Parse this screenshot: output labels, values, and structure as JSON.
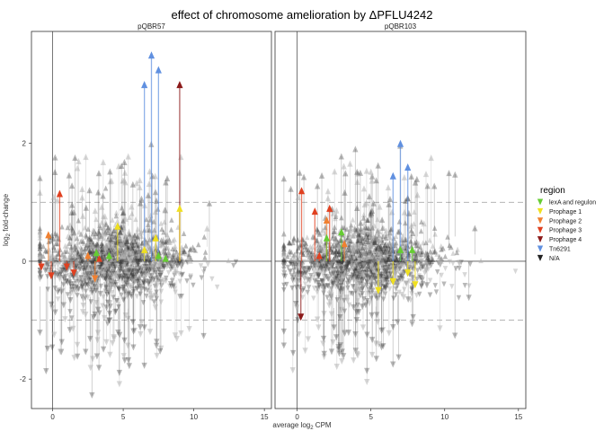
{
  "chart_data": {
    "type": "scatter",
    "title": "effect of chromosome amelioration by ΔPFLU4242",
    "xlabel": "average log2 CPM",
    "ylabel": "log2 fold-change",
    "xlim": [
      -1.5,
      15.5
    ],
    "ylim": [
      -2.5,
      3.9
    ],
    "xticks": [
      0,
      5,
      10,
      15
    ],
    "yticks": [
      -2,
      0,
      2
    ],
    "ref_lines": [
      -1,
      1
    ],
    "grid": false,
    "legend_position": "right",
    "legend_title": "region",
    "legend": [
      {
        "name": "lexA and regulon",
        "color": "#66cc33"
      },
      {
        "name": "Prophage 1",
        "color": "#f0e020"
      },
      {
        "name": "Prophage 2",
        "color": "#f08030"
      },
      {
        "name": "Prophage 3",
        "color": "#e04020"
      },
      {
        "name": "Prophage 4",
        "color": "#8b1a1a"
      },
      {
        "name": "Tn6291",
        "color": "#6090e0"
      },
      {
        "name": "N/A",
        "color": "#222222"
      }
    ],
    "panels": [
      {
        "name": "pQBR57",
        "highlighted": [
          {
            "region": "Tn6291",
            "x": 6.5,
            "y": 3.0
          },
          {
            "region": "Tn6291",
            "x": 7.0,
            "y": 3.5
          },
          {
            "region": "Tn6291",
            "x": 7.5,
            "y": 3.25
          },
          {
            "region": "Prophage 4",
            "x": 9.0,
            "y": 3.0
          },
          {
            "region": "Prophage 3",
            "x": 0.5,
            "y": 1.15
          },
          {
            "region": "Prophage 3",
            "x": -0.8,
            "y": -0.1
          },
          {
            "region": "Prophage 3",
            "x": -0.1,
            "y": -0.25
          },
          {
            "region": "Prophage 3",
            "x": 1.0,
            "y": -0.1
          },
          {
            "region": "Prophage 3",
            "x": 1.5,
            "y": -0.2
          },
          {
            "region": "Prophage 3",
            "x": 3.3,
            "y": 0.05
          },
          {
            "region": "Prophage 2",
            "x": -0.3,
            "y": 0.45
          },
          {
            "region": "Prophage 2",
            "x": 2.5,
            "y": 0.1
          },
          {
            "region": "Prophage 2",
            "x": 3.0,
            "y": -0.3
          },
          {
            "region": "Prophage 1",
            "x": 4.6,
            "y": 0.6
          },
          {
            "region": "Prophage 1",
            "x": 6.5,
            "y": 0.2
          },
          {
            "region": "Prophage 1",
            "x": 7.3,
            "y": 0.4
          },
          {
            "region": "Prophage 1",
            "x": 9.0,
            "y": 0.9
          },
          {
            "region": "lexA and regulon",
            "x": 3.1,
            "y": 0.15
          },
          {
            "region": "lexA and regulon",
            "x": 4.0,
            "y": 0.1
          },
          {
            "region": "lexA and regulon",
            "x": 7.5,
            "y": 0.1
          },
          {
            "region": "lexA and regulon",
            "x": 8.0,
            "y": 0.05
          }
        ]
      },
      {
        "name": "pQBR103",
        "highlighted": [
          {
            "region": "Tn6291",
            "x": 6.5,
            "y": 1.45
          },
          {
            "region": "Tn6291",
            "x": 7.0,
            "y": 2.0
          },
          {
            "region": "Tn6291",
            "x": 7.5,
            "y": 1.6
          },
          {
            "region": "Prophage 4",
            "x": 0.25,
            "y": -0.95
          },
          {
            "region": "Prophage 3",
            "x": 0.3,
            "y": 1.2
          },
          {
            "region": "Prophage 3",
            "x": 1.2,
            "y": 0.85
          },
          {
            "region": "Prophage 3",
            "x": 2.2,
            "y": 0.9
          },
          {
            "region": "Prophage 3",
            "x": 1.5,
            "y": 0.1
          },
          {
            "region": "Prophage 2",
            "x": 2.0,
            "y": 0.7
          },
          {
            "region": "Prophage 2",
            "x": 3.2,
            "y": 0.3
          },
          {
            "region": "Prophage 1",
            "x": 5.5,
            "y": -0.5
          },
          {
            "region": "Prophage 1",
            "x": 6.5,
            "y": -0.35
          },
          {
            "region": "Prophage 1",
            "x": 7.5,
            "y": -0.2
          },
          {
            "region": "Prophage 1",
            "x": 8.0,
            "y": -0.4
          },
          {
            "region": "lexA and regulon",
            "x": 2.0,
            "y": 0.4
          },
          {
            "region": "lexA and regulon",
            "x": 3.0,
            "y": 0.5
          },
          {
            "region": "lexA and regulon",
            "x": 7.0,
            "y": 0.2
          },
          {
            "region": "lexA and regulon",
            "x": 7.8,
            "y": 0.2
          }
        ]
      }
    ]
  }
}
